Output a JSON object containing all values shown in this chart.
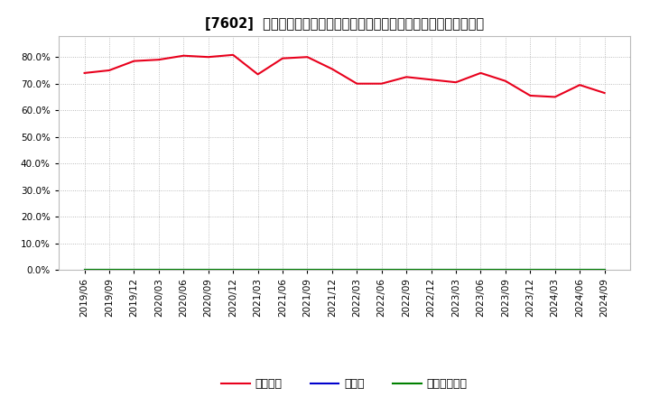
{
  "title": "[7602]  自己資本、のれん、繰延税金資産の総資産に対する比率の推移",
  "x_labels": [
    "2019/06",
    "2019/09",
    "2019/12",
    "2020/03",
    "2020/06",
    "2020/09",
    "2020/12",
    "2021/03",
    "2021/06",
    "2021/09",
    "2021/12",
    "2022/03",
    "2022/06",
    "2022/09",
    "2022/12",
    "2023/03",
    "2023/06",
    "2023/09",
    "2023/12",
    "2024/03",
    "2024/06",
    "2024/09"
  ],
  "equity_ratio": [
    74.0,
    75.0,
    78.5,
    79.0,
    80.5,
    80.0,
    80.8,
    73.5,
    79.5,
    80.0,
    75.5,
    70.0,
    70.0,
    72.5,
    71.5,
    70.5,
    74.0,
    71.0,
    65.5,
    65.0,
    69.5,
    66.5
  ],
  "goodwill_ratio": [
    0,
    0,
    0,
    0,
    0,
    0,
    0,
    0,
    0,
    0,
    0,
    0,
    0,
    0,
    0,
    0,
    0,
    0,
    0,
    0,
    0,
    0
  ],
  "deferred_tax_ratio": [
    0,
    0,
    0,
    0,
    0,
    0,
    0,
    0,
    0,
    0,
    0,
    0,
    0,
    0,
    0,
    0,
    0,
    0,
    0,
    0,
    0,
    0
  ],
  "equity_color": "#e8001c",
  "goodwill_color": "#0000cd",
  "deferred_tax_color": "#008000",
  "legend_equity": "自己資本",
  "legend_goodwill": "のれん",
  "legend_deferred": "繰延税金資産",
  "ylim": [
    0,
    88
  ],
  "yticks": [
    0,
    10,
    20,
    30,
    40,
    50,
    60,
    70,
    80
  ],
  "background_color": "#ffffff",
  "plot_bg_color": "#ffffff",
  "grid_color": "#aaaaaa",
  "title_fontsize": 10.5,
  "tick_fontsize": 7.5,
  "legend_fontsize": 9
}
